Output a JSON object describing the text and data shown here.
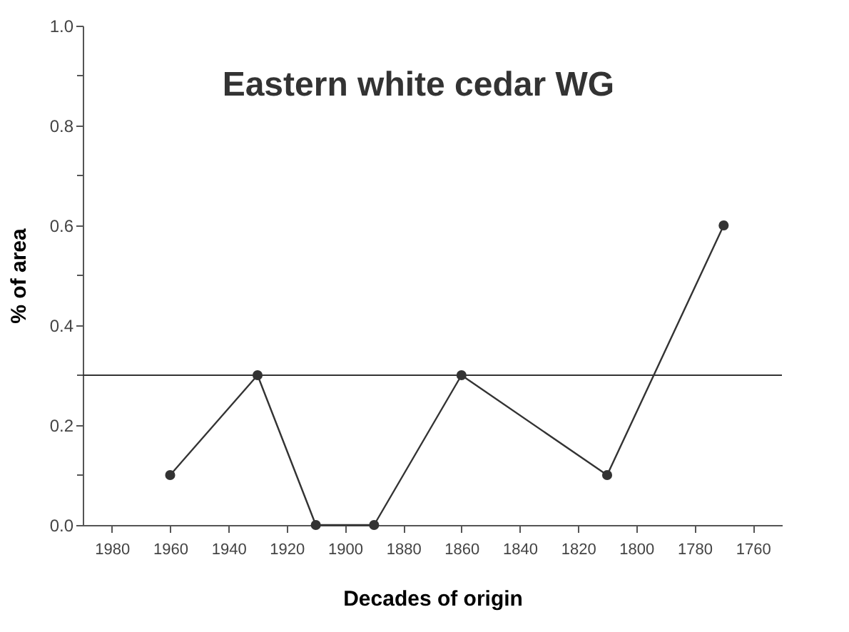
{
  "chart_data": {
    "type": "line",
    "title": "Eastern white cedar WG",
    "xlabel": "Decades of origin",
    "ylabel": "% of area",
    "x": [
      1960,
      1930,
      1910,
      1890,
      1860,
      1810,
      1770
    ],
    "series": [
      {
        "color": "#333333",
        "values": [
          0.1,
          0.3,
          0,
          0,
          0.3,
          0.1,
          0.6
        ]
      }
    ],
    "xlim": [
      1990,
      1750
    ],
    "xticks": [
      1980,
      1960,
      1940,
      1920,
      1900,
      1880,
      1860,
      1840,
      1820,
      1800,
      1780,
      1760
    ],
    "ylim": [
      0,
      1
    ],
    "yticks": [
      {
        "value": 0,
        "label": "0.0"
      },
      {
        "value": 0.1,
        "label": null
      },
      {
        "value": 0.2,
        "label": "0.2"
      },
      {
        "value": 0.3,
        "label": null
      },
      {
        "value": 0.4,
        "label": "0.4"
      },
      {
        "value": 0.5,
        "label": null
      },
      {
        "value": 0.6,
        "label": "0.6"
      },
      {
        "value": 0.7,
        "label": null
      },
      {
        "value": 0.8,
        "label": "0.8"
      },
      {
        "value": 0.9,
        "label": null
      },
      {
        "value": 1.0,
        "label": "1.0"
      }
    ],
    "ref_lines": [
      {
        "axis": "y",
        "value": 0.3,
        "color": "#333333"
      }
    ],
    "marker": "circle",
    "line_style": "solid",
    "grid": false
  }
}
